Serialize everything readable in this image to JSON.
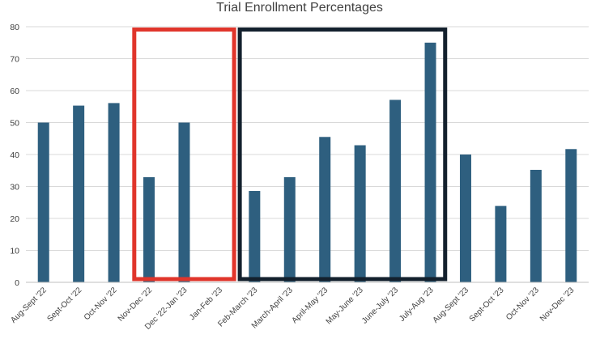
{
  "chart_data": {
    "type": "bar",
    "title": "Trial Enrollment Percentages",
    "xlabel": "",
    "ylabel": "",
    "ylim": [
      0,
      80
    ],
    "yticks": [
      0,
      10,
      20,
      30,
      40,
      50,
      60,
      70,
      80
    ],
    "grid": true,
    "legend": "none",
    "bar_color": "#2E5F7F",
    "categories": [
      "Aug-Sept '22",
      "Sept-Oct '22",
      "Oct-Nov '22",
      "Nov-Dec '22",
      "Dec '22-Jan '23",
      "Jan-Feb '23",
      "Feb-March '23",
      "March-April '23",
      "April-May '23",
      "May-June '23",
      "June-July '23",
      "July-Aug '23",
      "Aug-Sept '23",
      "Sept-Oct '23",
      "Oct-Nov '23",
      "Nov-Dec '23"
    ],
    "values": [
      50,
      55.3,
      56.1,
      32.9,
      50,
      0,
      28.6,
      32.9,
      45.5,
      42.9,
      57.1,
      75,
      40,
      23.9,
      35.2,
      41.7
    ],
    "highlights": [
      {
        "from_category": "Nov-Dec '22",
        "to_category": "Jan-Feb '23",
        "color": "#E0352B"
      },
      {
        "from_category": "Feb-March '23",
        "to_category": "July-Aug '23",
        "color": "#13202D"
      }
    ]
  }
}
